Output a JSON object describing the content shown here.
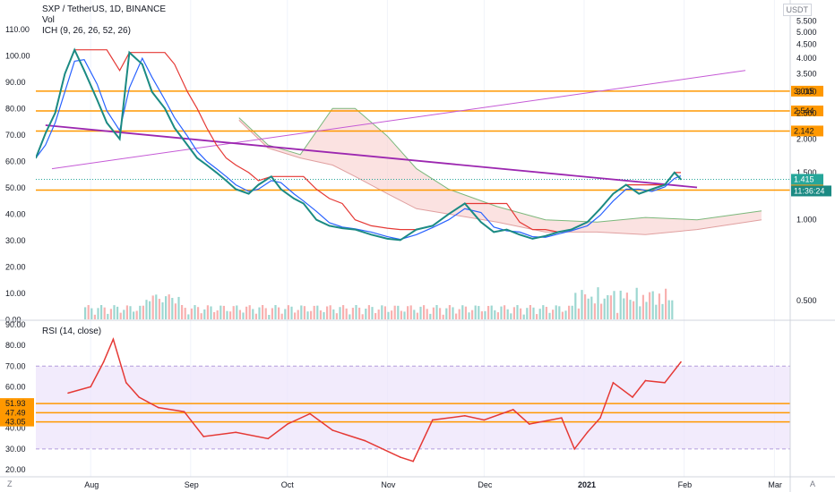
{
  "header": {
    "symbol_line": "SXP / TetherUS, 1D, BINANCE",
    "volume_label": "Vol",
    "ichimoku_label": "ICH (9, 26, 26, 52, 26)",
    "quote_badge": "USDT"
  },
  "rsi_panel": {
    "label": "RSI (14, close)"
  },
  "footer": {
    "zoom_left": "Z",
    "auto_right": "A"
  },
  "colors": {
    "price_line": "#1b8a83",
    "conversion": "#2962ff",
    "base": "#e53935",
    "trend_purple": "#9c27b0",
    "trend_violet": "#c55ad6",
    "level_orange": "#ff9800",
    "cloud_fill": "#f8cfcd",
    "cloud_edge_green": "#7cb87c",
    "cloud_edge_red": "#e0a0a0",
    "candle_up": "#26a69a",
    "candle_down": "#ef5350",
    "rsi_line": "#e53935",
    "rsi_band": "#ede2fb",
    "current_price_bg": "#26a69a",
    "timer_bg": "#1b8a83"
  },
  "chart_data": [
    {
      "type": "line",
      "title": "SXP / TetherUS, 1D, BINANCE",
      "scale": "log",
      "left_ticks": [
        "110.00",
        "100.00",
        "90.00",
        "80.00",
        "70.00",
        "60.00",
        "50.00",
        "40.00",
        "30.00",
        "20.00",
        "10.00",
        "0.00"
      ],
      "right_ticks": [
        "5.500",
        "5.000",
        "4.500",
        "4.000",
        "3.500",
        "3.000",
        "2.500",
        "2.000",
        "1.500",
        "1.000",
        "0.500"
      ],
      "x_ticks": [
        "Aug",
        "Sep",
        "Oct",
        "Nov",
        "Dec",
        "2021",
        "Feb",
        "Mar"
      ],
      "ylim": [
        0.35,
        5.8
      ],
      "horizontal_levels": [
        {
          "value": 3.015,
          "label": "3.015"
        },
        {
          "value": 2.544,
          "label": "2.544"
        },
        {
          "value": 2.142,
          "label": "2.142"
        },
        {
          "value": 1.29,
          "label": "1.290"
        }
      ],
      "current_price": {
        "value": 1.415,
        "label": "1.415"
      },
      "countdown": "11:36:24",
      "series": [
        {
          "kind": "price",
          "x": [
            "2020-07-15",
            "2020-07-18",
            "2020-07-21",
            "2020-07-24",
            "2020-07-27",
            "2020-07-30",
            "2020-08-03",
            "2020-08-06",
            "2020-08-10",
            "2020-08-13",
            "2020-08-17",
            "2020-08-20",
            "2020-08-24",
            "2020-08-27",
            "2020-08-31",
            "2020-09-03",
            "2020-09-06",
            "2020-09-09",
            "2020-09-12",
            "2020-09-15",
            "2020-09-19",
            "2020-09-22",
            "2020-09-26",
            "2020-09-29",
            "2020-10-03",
            "2020-10-06",
            "2020-10-10",
            "2020-10-14",
            "2020-10-18",
            "2020-10-22",
            "2020-10-27",
            "2020-11-01",
            "2020-11-05",
            "2020-11-10",
            "2020-11-15",
            "2020-11-20",
            "2020-11-25",
            "2020-11-30",
            "2020-12-04",
            "2020-12-08",
            "2020-12-12",
            "2020-12-16",
            "2020-12-20",
            "2020-12-24",
            "2020-12-28",
            "2021-01-02",
            "2021-01-06",
            "2021-01-10",
            "2021-01-14",
            "2021-01-18",
            "2021-01-22",
            "2021-01-26",
            "2021-01-29",
            "2021-01-31"
          ],
          "values": [
            1.7,
            2.1,
            2.5,
            3.5,
            4.3,
            3.6,
            2.8,
            2.3,
            2.0,
            4.2,
            3.8,
            3.0,
            2.6,
            2.2,
            1.9,
            1.7,
            1.6,
            1.5,
            1.4,
            1.3,
            1.25,
            1.35,
            1.45,
            1.3,
            1.2,
            1.15,
            1.0,
            0.95,
            0.93,
            0.92,
            0.88,
            0.85,
            0.84,
            0.92,
            0.95,
            1.05,
            1.15,
            0.98,
            0.9,
            0.92,
            0.88,
            0.85,
            0.87,
            0.9,
            0.92,
            0.98,
            1.1,
            1.25,
            1.35,
            1.25,
            1.3,
            1.35,
            1.5,
            1.415
          ]
        },
        {
          "kind": "rsi",
          "x": [
            "2020-07-25",
            "2020-08-01",
            "2020-08-05",
            "2020-08-08",
            "2020-08-12",
            "2020-08-16",
            "2020-08-22",
            "2020-08-30",
            "2020-09-05",
            "2020-09-15",
            "2020-09-25",
            "2020-10-01",
            "2020-10-08",
            "2020-10-15",
            "2020-10-25",
            "2020-11-05",
            "2020-11-09",
            "2020-11-15",
            "2020-11-25",
            "2020-12-01",
            "2020-12-10",
            "2020-12-15",
            "2020-12-25",
            "2020-12-29",
            "2021-01-02",
            "2021-01-06",
            "2021-01-10",
            "2021-01-16",
            "2021-01-20",
            "2021-01-26",
            "2021-01-31"
          ],
          "values": [
            57,
            60,
            72,
            83,
            62,
            55,
            50,
            48,
            36,
            38,
            35,
            42,
            47,
            39,
            34,
            26,
            24,
            44,
            46,
            44,
            49,
            42,
            45,
            30,
            38,
            45,
            62,
            55,
            63,
            62,
            72
          ],
          "ylim": [
            18,
            92
          ],
          "ticks": [
            "90.00",
            "80.00",
            "70.00",
            "60.00",
            "50.00",
            "40.00",
            "30.00",
            "20.00"
          ],
          "levels": [
            {
              "value": 51.93,
              "label": "51.93"
            },
            {
              "value": 47.49,
              "label": "47.49"
            },
            {
              "value": 43.05,
              "label": "43.05"
            }
          ],
          "band": [
            30,
            70
          ]
        }
      ],
      "trendlines": [
        {
          "name": "rising-support",
          "from": [
            "2020-07-20",
            1.55
          ],
          "to": [
            "2021-02-20",
            3.6
          ]
        },
        {
          "name": "falling-resistance",
          "from": [
            "2020-07-18",
            2.25
          ],
          "to": [
            "2021-02-05",
            1.32
          ]
        }
      ]
    }
  ]
}
